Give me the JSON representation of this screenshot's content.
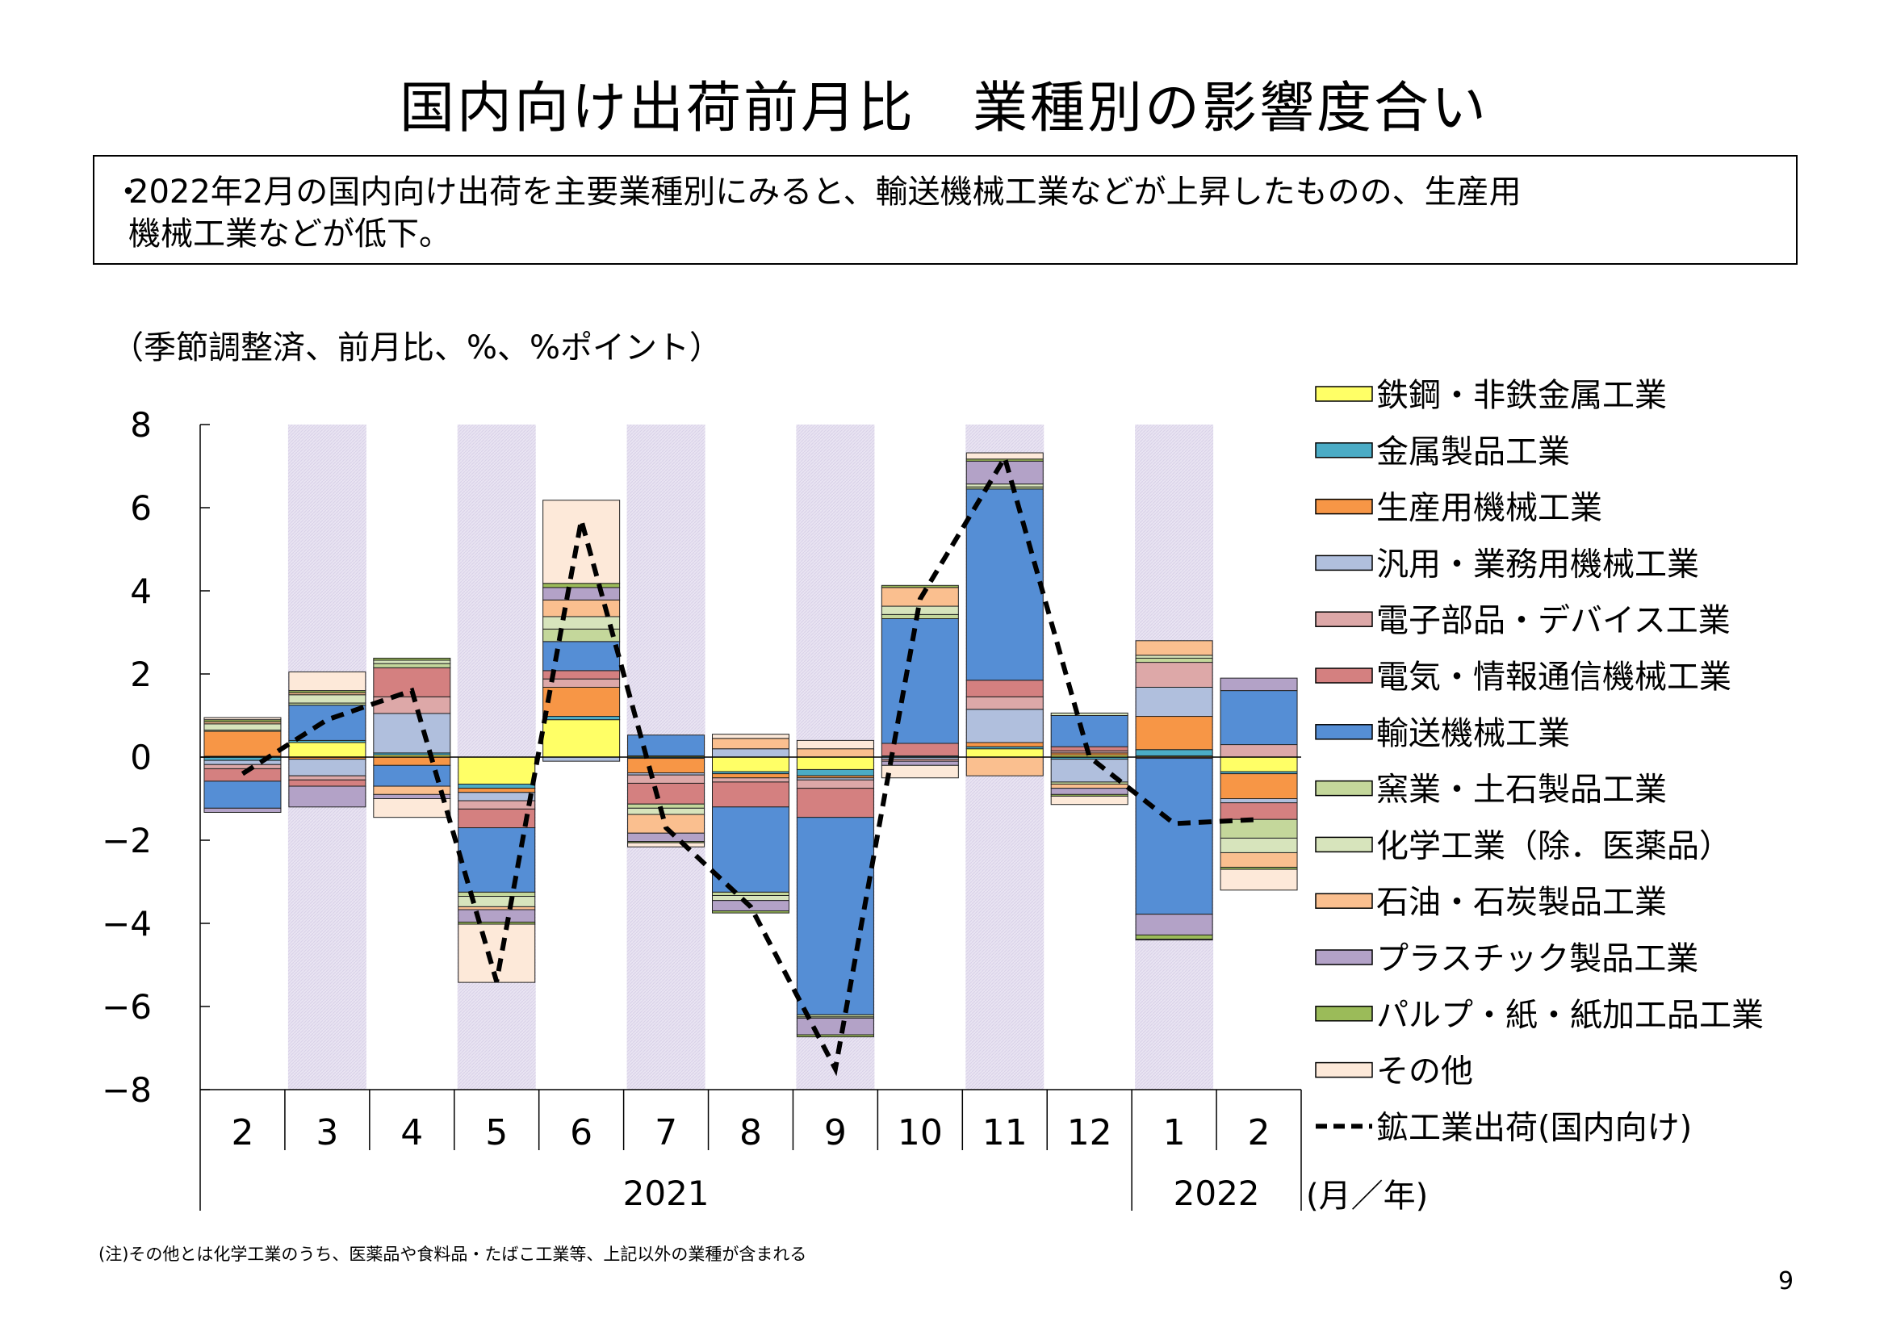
{
  "title": "国内向け出荷前月比　業種別の影響度合い",
  "summary": {
    "bullet": "・",
    "line1": "2022年2月の国内向け出荷を主要業種別にみると、輸送機械工業などが上昇したものの、生産用",
    "line2": "機械工業などが低下。"
  },
  "footnote": "(注)その他とは化学工業のうち、医薬品や食料品・たばこ工業等、上記以外の業種が含まれる",
  "page_number": "9",
  "chart_data": {
    "type": "bar",
    "stacked": true,
    "unit_note": "（季節調整済、前月比、%、%ポイント）",
    "x_unit_label": "(月／年)",
    "categories": [
      "2",
      "3",
      "4",
      "5",
      "6",
      "7",
      "8",
      "9",
      "10",
      "11",
      "12",
      "1",
      "2"
    ],
    "years": [
      {
        "label": "2021",
        "from": 0,
        "to": 10
      },
      {
        "label": "2022",
        "from": 11,
        "to": 12
      }
    ],
    "shaded_categories": [
      1,
      3,
      5,
      7,
      9,
      11
    ],
    "ylim": [
      -8,
      8
    ],
    "yticks": [
      8,
      6,
      4,
      2,
      0,
      -2,
      -4,
      -6,
      -8
    ],
    "ytick_labels": [
      "8",
      "6",
      "4",
      "2",
      "0",
      "−2",
      "−4",
      "−6",
      "−8"
    ],
    "grid": false,
    "legend_position": "right",
    "series": [
      {
        "name": "鉄鋼・非鉄金属工業",
        "color": "#FFFF66",
        "values": [
          0.02,
          0.35,
          0.05,
          -0.65,
          0.9,
          0.03,
          -0.35,
          -0.3,
          0.0,
          0.2,
          0.05,
          0.03,
          -0.35
        ]
      },
      {
        "name": "金属製品工業",
        "color": "#4BACC6",
        "values": [
          -0.08,
          0.05,
          0.05,
          -0.1,
          0.08,
          -0.03,
          -0.05,
          -0.15,
          0.03,
          0.05,
          -0.05,
          0.15,
          -0.05
        ]
      },
      {
        "name": "生産用機械工業",
        "color": "#F79646",
        "values": [
          0.6,
          -0.05,
          -0.2,
          -0.1,
          0.7,
          -0.35,
          -0.1,
          -0.05,
          0.0,
          0.1,
          0.05,
          0.8,
          -0.6
        ]
      },
      {
        "name": "汎用・業務用機械工業",
        "color": "#B0BFDD",
        "values": [
          -0.1,
          -0.4,
          0.95,
          -0.2,
          -0.1,
          -0.05,
          0.2,
          -0.05,
          -0.05,
          0.8,
          -0.55,
          0.7,
          -0.1
        ]
      },
      {
        "name": "電子部品・デバイス工業",
        "color": "#DDA8A8",
        "values": [
          -0.1,
          -0.1,
          0.4,
          -0.2,
          0.2,
          -0.2,
          -0.1,
          -0.2,
          -0.05,
          0.3,
          0.05,
          0.6,
          0.3
        ]
      },
      {
        "name": "電気・情報通信機械工業",
        "color": "#D48080",
        "values": [
          -0.3,
          -0.15,
          0.7,
          -0.45,
          0.2,
          -0.5,
          -0.6,
          -0.7,
          0.3,
          0.4,
          0.1,
          -0.03,
          -0.4
        ]
      },
      {
        "name": "輸送機械工業",
        "color": "#558ED5",
        "values": [
          -0.65,
          0.85,
          -0.5,
          -1.55,
          0.7,
          0.5,
          -2.05,
          -4.75,
          3.0,
          4.6,
          0.75,
          -3.75,
          1.3
        ]
      },
      {
        "name": "窯業・土石製品工業",
        "color": "#C4D79B",
        "values": [
          0.03,
          0.05,
          0.1,
          -0.1,
          0.3,
          -0.1,
          -0.08,
          -0.05,
          0.1,
          0.05,
          -0.05,
          0.1,
          -0.45
        ]
      },
      {
        "name": "化学工業（除．医薬品）",
        "color": "#D7E4BC",
        "values": [
          0.15,
          0.2,
          0.08,
          -0.25,
          0.3,
          -0.15,
          -0.12,
          -0.03,
          0.2,
          0.07,
          0.06,
          0.07,
          -0.35
        ]
      },
      {
        "name": "石油・石炭製品工業",
        "color": "#FABF8F",
        "values": [
          0.05,
          0.05,
          -0.2,
          -0.07,
          0.4,
          -0.45,
          0.25,
          0.2,
          0.45,
          -0.45,
          -0.1,
          0.35,
          -0.35
        ]
      },
      {
        "name": "プラスチック製品工業",
        "color": "#B3A2C7",
        "values": [
          -0.1,
          -0.5,
          -0.1,
          -0.3,
          0.3,
          -0.2,
          -0.25,
          -0.4,
          -0.1,
          0.55,
          -0.15,
          -0.5,
          0.3
        ]
      },
      {
        "name": "パルプ・紙・紙加工品工業",
        "color": "#9BBB59",
        "values": [
          0.05,
          0.05,
          0.05,
          -0.05,
          0.1,
          -0.03,
          -0.05,
          -0.05,
          0.05,
          0.05,
          -0.04,
          -0.1,
          -0.05
        ]
      },
      {
        "name": "その他",
        "color": "#FDE9D9",
        "values": [
          0.05,
          0.45,
          -0.45,
          -1.4,
          2.0,
          -0.1,
          0.1,
          0.2,
          -0.3,
          0.15,
          -0.2,
          -0.02,
          -0.5
        ]
      }
    ],
    "line_series": {
      "name": "鉱工業出荷（国内向け）",
      "color": "#000000",
      "style": "dashed",
      "values": [
        -0.4,
        0.9,
        1.6,
        -5.4,
        5.7,
        -1.7,
        -3.6,
        -7.5,
        3.8,
        7.2,
        0.0,
        -1.6,
        -1.5
      ]
    },
    "legend_labels": [
      "鉄鋼・非鉄金属工業",
      "金属製品工業",
      "生産用機械工業",
      "汎用・業務用機械工業",
      "電子部品・デバイス工業",
      "電気・情報通信機械工業",
      "輸送機械工業",
      "窯業・土石製品工業",
      "化学工業（除．医薬品）",
      "石油・石炭製品工業",
      "プラスチック製品工業",
      "パルプ・紙・紙加工品工業",
      "その他",
      "鉱工業出荷(国内向け)"
    ]
  }
}
